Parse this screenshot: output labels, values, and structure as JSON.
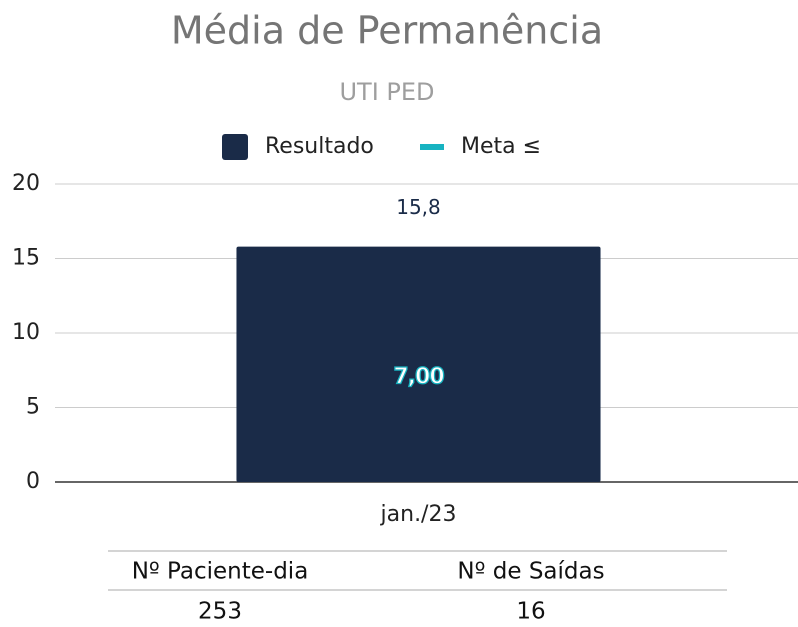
{
  "chart_data": {
    "type": "bar",
    "title": "Média de Permanência",
    "subtitle": "UTI PED",
    "categories": [
      "jan./23"
    ],
    "series": [
      {
        "name": "Resultado",
        "color": "#1a2b48",
        "values": [
          15.8
        ],
        "value_labels": [
          "15,8"
        ]
      },
      {
        "name": "Meta ≤",
        "color": "#17b3c1",
        "type": "line",
        "values": [
          7
        ],
        "value_labels": [
          "7,00"
        ]
      }
    ],
    "ylim": [
      0,
      20
    ],
    "yticks": [
      0,
      5,
      10,
      15,
      20
    ],
    "grid": true,
    "legend": "top",
    "table": {
      "headers": [
        "Nº Paciente-dia",
        "Nº de Saídas"
      ],
      "rows": [
        [
          253,
          16
        ]
      ]
    }
  }
}
